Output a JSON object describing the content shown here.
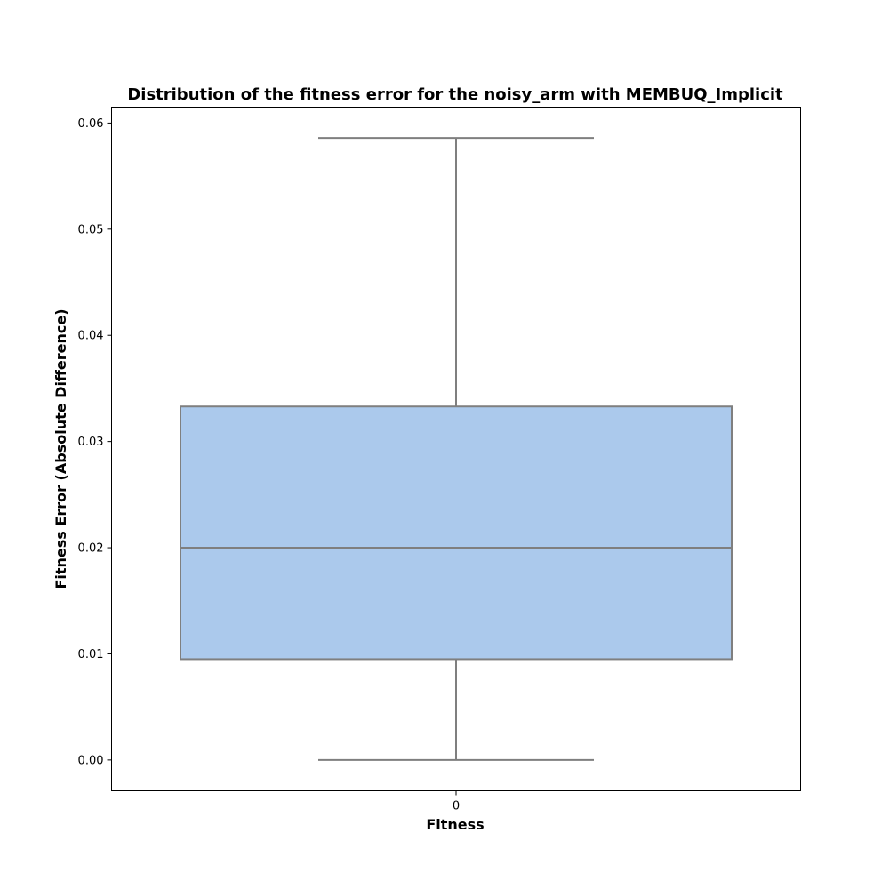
{
  "chart_data": {
    "type": "box",
    "title": "Distribution of the fitness error for the noisy_arm with MEMBUQ_Implicit",
    "xlabel": "Fitness",
    "ylabel": "Fitness Error (Absolute Difference)",
    "categories": [
      "0"
    ],
    "ylim": [
      -0.0029,
      0.0615
    ],
    "yticks": [
      "0.00",
      "0.01",
      "0.02",
      "0.03",
      "0.04",
      "0.05",
      "0.06"
    ],
    "boxes": [
      {
        "category": "0",
        "whisker_low": 0.0,
        "q1": 0.0095,
        "median": 0.02,
        "q3": 0.0333,
        "whisker_high": 0.0586
      }
    ],
    "grid": false,
    "colors": {
      "box_fill": "#abc9ec",
      "line": "#7f7f7f",
      "frame": "#000000"
    }
  }
}
